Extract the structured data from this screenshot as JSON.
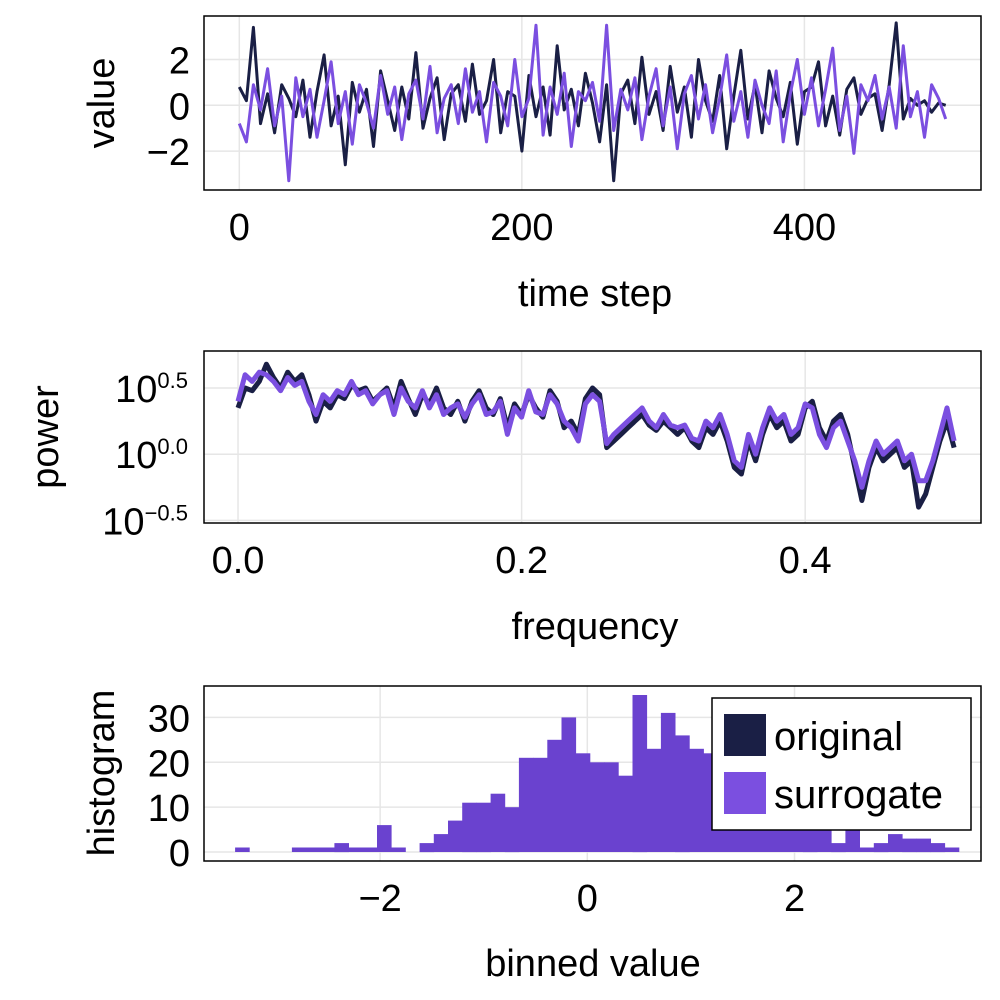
{
  "colors": {
    "original": "#1a1f45",
    "surrogate": "#7b4fe0",
    "overlap": "#6a42cf"
  },
  "chart_data": [
    {
      "type": "line",
      "xlabel": "time step",
      "ylabel": "value",
      "xlim": [
        -25,
        525
      ],
      "ylim": [
        -3.7,
        3.9
      ],
      "xticks": [
        {
          "v": 0,
          "label": "0"
        },
        {
          "v": 200,
          "label": "200"
        },
        {
          "v": 400,
          "label": "400"
        }
      ],
      "yticks": [
        {
          "v": 2,
          "label": "2"
        },
        {
          "v": 0,
          "label": "0"
        },
        {
          "v": -2,
          "label": "−2"
        }
      ],
      "grid": true,
      "series": [
        {
          "name": "original",
          "x_start": 0,
          "x_step": 5,
          "values": [
            0.8,
            0.2,
            3.4,
            -0.8,
            0.5,
            -1.2,
            0.9,
            0.3,
            -0.5,
            1.1,
            -1.4,
            0.6,
            2.2,
            -0.9,
            0.4,
            -2.6,
            1.0,
            -0.3,
            0.7,
            -1.8,
            1.5,
            0.2,
            -1.1,
            0.8,
            -0.6,
            2.3,
            -1.0,
            0.3,
            1.2,
            -1.5,
            0.5,
            0.9,
            -0.7,
            1.8,
            -0.4,
            0.2,
            2.0,
            -1.2,
            0.6,
            0.4,
            -2.0,
            1.3,
            -0.5,
            0.8,
            -1.3,
            2.6,
            -0.2,
            0.7,
            -0.9,
            1.4,
            0.1,
            -1.6,
            0.9,
            -3.3,
            0.5,
            1.1,
            -0.8,
            2.1,
            -0.4,
            0.6,
            -1.1,
            1.7,
            -0.3,
            0.8,
            -1.4,
            2.0,
            0.2,
            -0.7,
            1.3,
            -1.9,
            0.4,
            2.4,
            -0.6,
            0.9,
            -1.2,
            1.5,
            0.3,
            -0.5,
            1.0,
            -1.7,
            0.6,
            0.8,
            1.9,
            -0.9,
            0.4,
            -1.3,
            0.7,
            1.2,
            -0.4,
            0.3,
            0.5,
            -1.1,
            0.9,
            3.6,
            -0.6,
            0.3,
            0.0,
            0.2,
            -0.3,
            0.1,
            0.0
          ]
        },
        {
          "name": "surrogate",
          "x_start": 0,
          "x_step": 5,
          "values": [
            -0.8,
            -1.6,
            0.9,
            -0.2,
            1.6,
            -0.9,
            0.4,
            -3.3,
            1.2,
            -0.5,
            0.7,
            -1.4,
            0.2,
            1.9,
            -0.8,
            0.6,
            -1.7,
            0.9,
            0.1,
            -1.0,
            1.3,
            -0.4,
            0.8,
            -1.5,
            0.5,
            1.1,
            -0.6,
            1.7,
            -1.2,
            0.3,
            0.9,
            -0.8,
            1.6,
            -0.3,
            0.6,
            -1.6,
            1.0,
            0.4,
            -0.9,
            2.0,
            -0.5,
            0.3,
            3.5,
            -1.3,
            0.8,
            -0.4,
            1.4,
            -1.8,
            0.6,
            0.2,
            1.0,
            -0.7,
            3.5,
            -1.1,
            0.7,
            -0.2,
            1.2,
            -1.5,
            0.4,
            1.6,
            -0.9,
            0.8,
            -1.9,
            0.5,
            1.3,
            -0.6,
            0.9,
            -1.2,
            0.3,
            2.2,
            -0.7,
            0.6,
            -1.4,
            1.1,
            0.0,
            -0.8,
            1.5,
            -1.6,
            0.5,
            2.0,
            -0.4,
            1.2,
            -0.9,
            0.7,
            2.5,
            -1.1,
            0.4,
            -2.1,
            0.9,
            0.2,
            1.3,
            -0.6,
            0.8,
            -1.0,
            2.6,
            -0.5,
            0.6,
            -1.4,
            0.9,
            0.3,
            -0.6
          ]
        }
      ]
    },
    {
      "type": "line",
      "xlabel": "frequency",
      "ylabel": "power",
      "yscale": "log10",
      "xlim": [
        -0.024,
        0.524
      ],
      "ylim": [
        -0.52,
        0.78
      ],
      "xticks": [
        {
          "v": 0.0,
          "label": "0.0"
        },
        {
          "v": 0.2,
          "label": "0.2"
        },
        {
          "v": 0.4,
          "label": "0.4"
        }
      ],
      "yticks": [
        {
          "v": 0.5,
          "base": "10",
          "exp": "0.5"
        },
        {
          "v": 0.0,
          "base": "10",
          "exp": "0.0"
        },
        {
          "v": -0.5,
          "base": "10",
          "exp": "−0.5"
        }
      ],
      "grid": true,
      "series": [
        {
          "name": "original",
          "x_start": 0.0,
          "x_step": 0.005,
          "log10_values": [
            0.35,
            0.5,
            0.48,
            0.55,
            0.68,
            0.58,
            0.5,
            0.62,
            0.55,
            0.6,
            0.45,
            0.25,
            0.4,
            0.35,
            0.45,
            0.42,
            0.52,
            0.48,
            0.5,
            0.4,
            0.45,
            0.5,
            0.35,
            0.55,
            0.42,
            0.3,
            0.45,
            0.38,
            0.5,
            0.35,
            0.3,
            0.4,
            0.25,
            0.4,
            0.48,
            0.35,
            0.3,
            0.42,
            0.2,
            0.38,
            0.3,
            0.45,
            0.35,
            0.28,
            0.48,
            0.4,
            0.2,
            0.25,
            0.15,
            0.42,
            0.5,
            0.45,
            0.05,
            0.1,
            0.15,
            0.2,
            0.25,
            0.3,
            0.22,
            0.18,
            0.25,
            0.2,
            0.15,
            0.2,
            0.1,
            0.05,
            0.2,
            0.15,
            0.25,
            0.1,
            -0.1,
            -0.15,
            0.1,
            -0.05,
            0.15,
            0.3,
            0.2,
            0.25,
            0.1,
            0.15,
            0.35,
            0.4,
            0.2,
            0.1,
            0.25,
            0.3,
            0.15,
            -0.1,
            -0.35,
            -0.1,
            0.05,
            -0.05,
            0.0,
            0.05,
            -0.1,
            -0.05,
            -0.4,
            -0.3,
            -0.1,
            0.1,
            0.25,
            0.05
          ]
        },
        {
          "name": "surrogate",
          "x_start": 0.0,
          "x_step": 0.005,
          "log10_values": [
            0.4,
            0.6,
            0.55,
            0.62,
            0.6,
            0.55,
            0.48,
            0.58,
            0.52,
            0.55,
            0.4,
            0.3,
            0.45,
            0.4,
            0.48,
            0.45,
            0.55,
            0.45,
            0.48,
            0.38,
            0.45,
            0.48,
            0.3,
            0.5,
            0.4,
            0.35,
            0.48,
            0.35,
            0.45,
            0.3,
            0.35,
            0.38,
            0.28,
            0.38,
            0.45,
            0.3,
            0.32,
            0.4,
            0.15,
            0.35,
            0.28,
            0.48,
            0.32,
            0.3,
            0.45,
            0.38,
            0.25,
            0.2,
            0.1,
            0.38,
            0.45,
            0.4,
            0.08,
            0.15,
            0.2,
            0.25,
            0.3,
            0.35,
            0.25,
            0.2,
            0.3,
            0.22,
            0.2,
            0.22,
            0.12,
            0.1,
            0.25,
            0.2,
            0.3,
            0.15,
            -0.05,
            -0.1,
            0.15,
            0.0,
            0.2,
            0.35,
            0.25,
            0.3,
            0.15,
            0.2,
            0.38,
            0.35,
            0.15,
            0.05,
            0.2,
            0.25,
            0.1,
            -0.05,
            -0.25,
            -0.05,
            0.1,
            0.0,
            0.05,
            0.1,
            -0.05,
            0.0,
            -0.2,
            -0.2,
            -0.05,
            0.15,
            0.35,
            0.1
          ]
        }
      ]
    },
    {
      "type": "bar",
      "xlabel": "binned value",
      "ylabel": "histogram",
      "xlim": [
        -3.7,
        3.8
      ],
      "ylim": [
        -2,
        37
      ],
      "xticks": [
        {
          "v": -2,
          "label": "−2"
        },
        {
          "v": 0,
          "label": "0"
        },
        {
          "v": 2,
          "label": "2"
        }
      ],
      "yticks": [
        {
          "v": 30,
          "label": "30"
        },
        {
          "v": 20,
          "label": "20"
        },
        {
          "v": 10,
          "label": "10"
        },
        {
          "v": 0,
          "label": "0"
        }
      ],
      "grid": true,
      "legend": {
        "placement": "top-right",
        "entries": [
          {
            "name": "original",
            "color_key": "original"
          },
          {
            "name": "surrogate",
            "color_key": "surrogate"
          }
        ]
      },
      "bin_start": -3.4,
      "bin_width": 0.137,
      "values": [
        1,
        0,
        0,
        0,
        1,
        1,
        1,
        2,
        1,
        1,
        6,
        1,
        0,
        2,
        4,
        7,
        11,
        11,
        13,
        10,
        21,
        21,
        25,
        30,
        22,
        20,
        20,
        17,
        35,
        23,
        31,
        26,
        23,
        22,
        20,
        17,
        13,
        20,
        17,
        15,
        11,
        7,
        2,
        6,
        1,
        2,
        4,
        3,
        3,
        2,
        1,
        0,
        0,
        0,
        0,
        1,
        1,
        0
      ]
    }
  ]
}
